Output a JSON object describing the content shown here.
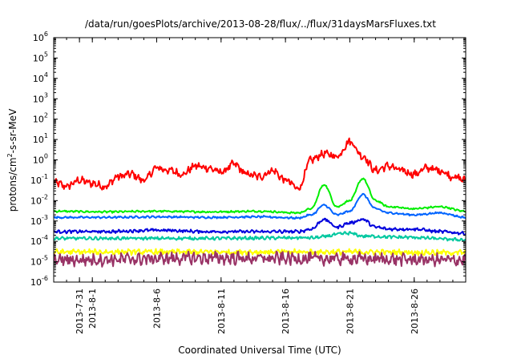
{
  "chart_data": {
    "type": "line",
    "title": "/data/run/goesPlots/archive/2013-08-28/flux/../flux/31daysMarsFluxes.txt",
    "xlabel": "Coordinated Universal Time (UTC)",
    "ylabel": "protons/cm²-s-sr-MeV",
    "ylabel_parts": {
      "pre": "protons/cm",
      "sup": "2",
      "post": "-s-sr-MeV"
    },
    "yscale": "log",
    "ylim": [
      1e-06,
      1000000.0
    ],
    "yticks": [
      {
        "exp": -6,
        "label": "10",
        "sup": "-6"
      },
      {
        "exp": -5,
        "label": "10",
        "sup": "-5"
      },
      {
        "exp": -4,
        "label": "10",
        "sup": "-4"
      },
      {
        "exp": -3,
        "label": "10",
        "sup": "-3"
      },
      {
        "exp": -2,
        "label": "10",
        "sup": "-2"
      },
      {
        "exp": -1,
        "label": "10",
        "sup": "-1"
      },
      {
        "exp": 0,
        "label": "10",
        "sup": "0"
      },
      {
        "exp": 1,
        "label": "10",
        "sup": "1"
      },
      {
        "exp": 2,
        "label": "10",
        "sup": "2"
      },
      {
        "exp": 3,
        "label": "10",
        "sup": "3"
      },
      {
        "exp": 4,
        "label": "10",
        "sup": "4"
      },
      {
        "exp": 5,
        "label": "10",
        "sup": "5"
      },
      {
        "exp": 6,
        "label": "10",
        "sup": "6"
      }
    ],
    "xlim": [
      "2013-07-29T00:00",
      "2013-08-30T00:00"
    ],
    "xticks": [
      {
        "date": "2013-07-31",
        "label": "2013-7-31"
      },
      {
        "date": "2013-08-01",
        "label": "2013-8-1"
      },
      {
        "date": "2013-08-06",
        "label": "2013-8-6"
      },
      {
        "date": "2013-08-11",
        "label": "2013-8-11"
      },
      {
        "date": "2013-08-16",
        "label": "2013-8-16"
      },
      {
        "date": "2013-08-21",
        "label": "2013-8-21"
      },
      {
        "date": "2013-08-26",
        "label": "2013-8-26"
      }
    ],
    "grid": false,
    "series": [
      {
        "color": "#ff0000",
        "x": [
          "2013-07-29",
          "2013-07-30",
          "2013-07-31",
          "2013-08-01",
          "2013-08-02",
          "2013-08-03",
          "2013-08-04",
          "2013-08-05",
          "2013-08-06",
          "2013-08-07",
          "2013-08-08",
          "2013-08-09",
          "2013-08-10",
          "2013-08-11",
          "2013-08-12",
          "2013-08-13",
          "2013-08-14",
          "2013-08-15",
          "2013-08-16",
          "2013-08-17",
          "2013-08-18",
          "2013-08-19",
          "2013-08-20",
          "2013-08-21",
          "2013-08-22",
          "2013-08-23",
          "2013-08-24",
          "2013-08-25",
          "2013-08-26",
          "2013-08-27",
          "2013-08-28",
          "2013-08-29",
          "2013-08-30"
        ],
        "y": [
          0.08,
          0.05,
          0.1,
          0.07,
          0.05,
          0.15,
          0.2,
          0.1,
          0.4,
          0.3,
          0.2,
          0.5,
          0.4,
          0.25,
          0.6,
          0.2,
          0.15,
          0.3,
          0.1,
          0.04,
          1.0,
          2.0,
          1.5,
          8.0,
          1.5,
          0.3,
          0.5,
          0.3,
          0.2,
          0.4,
          0.3,
          0.15,
          0.1
        ],
        "noise": 0.5
      },
      {
        "color": "#00ee00",
        "x": [
          "2013-07-29",
          "2013-08-02",
          "2013-08-06",
          "2013-08-10",
          "2013-08-14",
          "2013-08-17",
          "2013-08-18",
          "2013-08-19",
          "2013-08-20",
          "2013-08-21",
          "2013-08-22",
          "2013-08-23",
          "2013-08-24",
          "2013-08-26",
          "2013-08-28",
          "2013-08-30"
        ],
        "y": [
          0.003,
          0.0028,
          0.003,
          0.0028,
          0.003,
          0.0025,
          0.004,
          0.06,
          0.005,
          0.01,
          0.12,
          0.01,
          0.005,
          0.004,
          0.005,
          0.003
        ],
        "noise": 0.12
      },
      {
        "color": "#0064ff",
        "x": [
          "2013-07-29",
          "2013-08-02",
          "2013-08-06",
          "2013-08-10",
          "2013-08-14",
          "2013-08-17",
          "2013-08-18",
          "2013-08-19",
          "2013-08-20",
          "2013-08-21",
          "2013-08-22",
          "2013-08-23",
          "2013-08-24",
          "2013-08-26",
          "2013-08-28",
          "2013-08-30"
        ],
        "y": [
          0.0015,
          0.0015,
          0.0016,
          0.0015,
          0.0016,
          0.0014,
          0.002,
          0.006,
          0.002,
          0.003,
          0.02,
          0.004,
          0.0025,
          0.002,
          0.0025,
          0.0015
        ],
        "noise": 0.12
      },
      {
        "color": "#0000dd",
        "x": [
          "2013-07-29",
          "2013-08-02",
          "2013-08-06",
          "2013-08-10",
          "2013-08-14",
          "2013-08-17",
          "2013-08-18",
          "2013-08-19",
          "2013-08-20",
          "2013-08-21",
          "2013-08-22",
          "2013-08-23",
          "2013-08-24",
          "2013-08-26",
          "2013-08-28",
          "2013-08-30"
        ],
        "y": [
          0.0003,
          0.0003,
          0.00035,
          0.0003,
          0.0003,
          0.0003,
          0.0004,
          0.0012,
          0.0005,
          0.0008,
          0.0012,
          0.0005,
          0.0004,
          0.0004,
          0.0003,
          0.00025
        ],
        "noise": 0.2
      },
      {
        "color": "#00c8a0",
        "x": [
          "2013-07-29",
          "2013-08-10",
          "2013-08-18",
          "2013-08-21",
          "2013-08-22",
          "2013-08-25",
          "2013-08-30"
        ],
        "y": [
          0.00014,
          0.00014,
          0.00015,
          0.00025,
          0.00018,
          0.00016,
          0.00012
        ],
        "noise": 0.2
      },
      {
        "color": "#ffff00",
        "x": [
          "2013-07-29",
          "2013-08-10",
          "2013-08-20",
          "2013-08-30"
        ],
        "y": [
          3e-05,
          3e-05,
          3e-05,
          2.8e-05
        ],
        "noise": 0.35
      },
      {
        "color": "#993366",
        "x": [
          "2013-07-29",
          "2013-08-10",
          "2013-08-20",
          "2013-08-30"
        ],
        "y": [
          1.2e-05,
          1.5e-05,
          1.4e-05,
          1.2e-05
        ],
        "noise": 0.8
      }
    ]
  }
}
